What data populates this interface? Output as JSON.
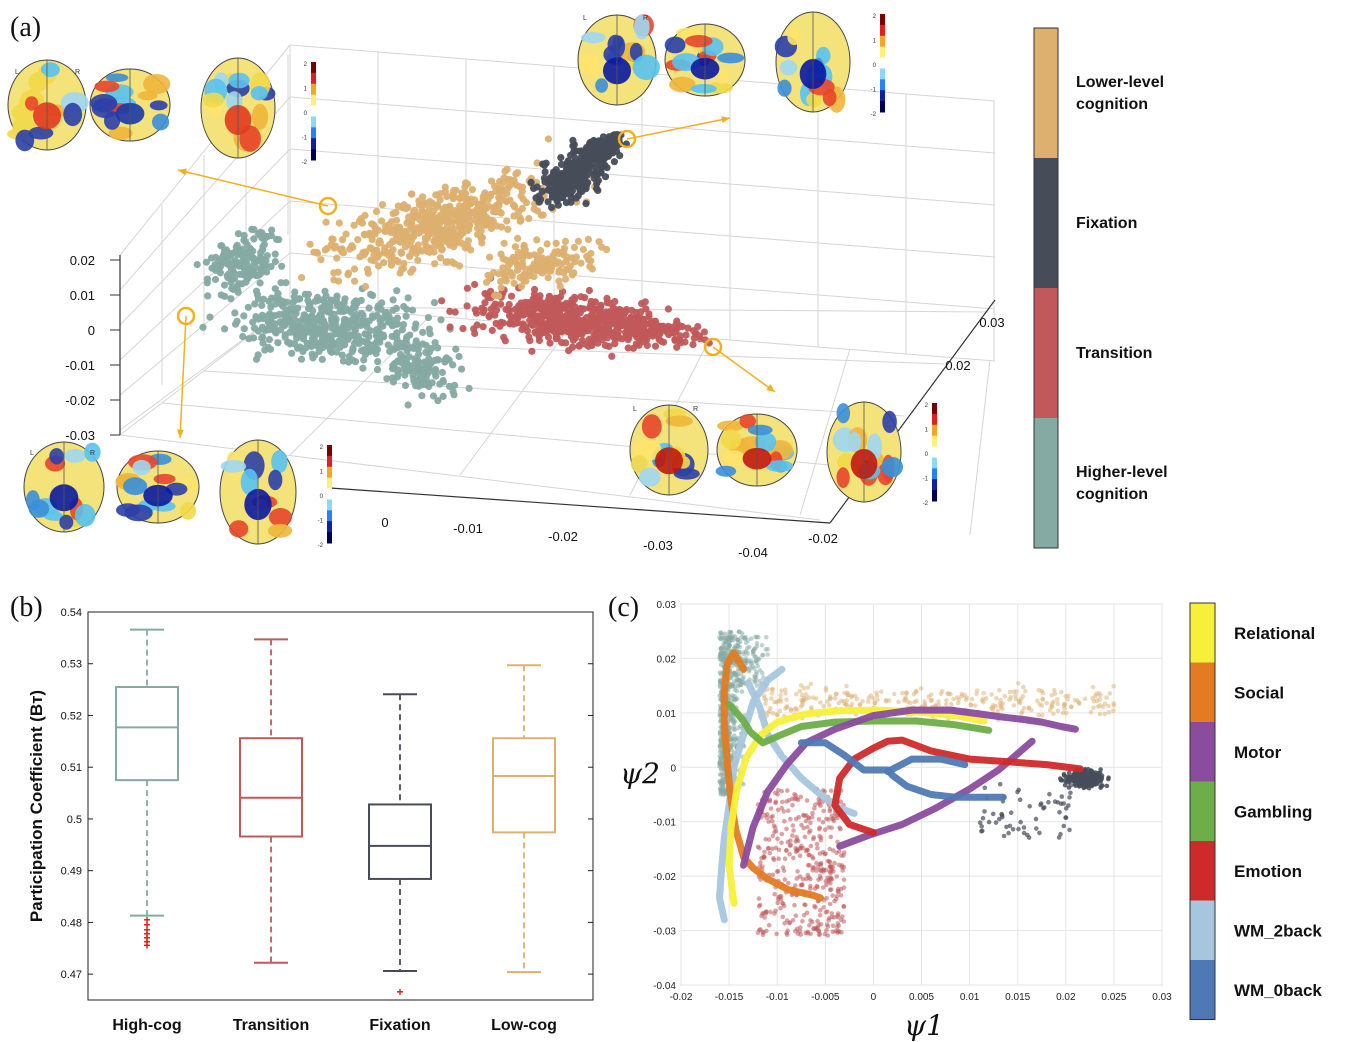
{
  "panels": {
    "a_label": "(a)",
    "b_label": "(b)",
    "c_label": "(c)"
  },
  "chart_data": [
    {
      "id": "a",
      "type": "scatter",
      "projection": "3d",
      "title": "",
      "xlabel": "",
      "ylabel": "",
      "zlabel": "",
      "x_ticks": [
        "0",
        "-0.01",
        "-0.02",
        "-0.03",
        "-0.04"
      ],
      "y_ticks": [
        "-0.02",
        "0.02",
        "0.03"
      ],
      "z_ticks": [
        "0.02",
        "0.01",
        "0",
        "-0.01",
        "-0.02",
        "-0.03"
      ],
      "xlim": [
        -0.04,
        0.0
      ],
      "ylim": [
        -0.02,
        0.03
      ],
      "zlim": [
        -0.03,
        0.02
      ],
      "grid": true,
      "legend": {
        "placement": "right colorbar",
        "entries": [
          {
            "label": "Lower-level\ncognition",
            "color": "#DDB070"
          },
          {
            "label": "Fixation",
            "color": "#474C59"
          },
          {
            "label": "Transition",
            "color": "#C1585A"
          },
          {
            "label": "Higher-level\ncognition",
            "color": "#85A9A3"
          }
        ]
      },
      "series": [
        {
          "name": "Higher-level cognition",
          "color": "#85A9A3",
          "approx_points": 900
        },
        {
          "name": "Transition",
          "color": "#C1585A",
          "approx_points": 800
        },
        {
          "name": "Lower-level cognition",
          "color": "#DDB070",
          "approx_points": 900
        },
        {
          "name": "Fixation",
          "color": "#474C59",
          "approx_points": 400
        }
      ],
      "annotations": {
        "brain_map_colorbar_ticks": [
          "2",
          "1",
          "0",
          "-1",
          "-2"
        ],
        "brain_map_labels": [
          "L",
          "R"
        ],
        "highlight_ring_color": "#F2B01E"
      }
    },
    {
      "id": "b",
      "type": "box",
      "title": "",
      "xlabel": "",
      "ylabel": "Participation Coefficient (B_T)",
      "categories": [
        "High-cog",
        "Transition",
        "Fixation",
        "Low-cog"
      ],
      "ylim": [
        0.465,
        0.54
      ],
      "yticks": [
        "0.54",
        "0.53",
        "0.52",
        "0.51",
        "0.5",
        "0.49",
        "0.48",
        "0.47"
      ],
      "grid": false,
      "boxes": [
        {
          "name": "High-cog",
          "color": "#85A9A3",
          "whisker_low": 0.4813,
          "q1": 0.5075,
          "median": 0.5177,
          "q3": 0.5255,
          "whisker_high": 0.5366,
          "outliers": [
            0.4805,
            0.4795,
            0.4785,
            0.4778,
            0.477,
            0.4762,
            0.4755
          ]
        },
        {
          "name": "Transition",
          "color": "#C1585A",
          "whisker_low": 0.4722,
          "q1": 0.4966,
          "median": 0.5041,
          "q3": 0.5156,
          "whisker_high": 0.5347,
          "outliers": []
        },
        {
          "name": "Fixation",
          "color": "#474C59",
          "whisker_low": 0.4706,
          "q1": 0.4884,
          "median": 0.4948,
          "q3": 0.5028,
          "whisker_high": 0.5241,
          "outliers": [
            0.4665
          ]
        },
        {
          "name": "Low-cog",
          "color": "#DDB070",
          "whisker_low": 0.4704,
          "q1": 0.4974,
          "median": 0.5083,
          "q3": 0.5156,
          "whisker_high": 0.5297,
          "outliers": []
        }
      ]
    },
    {
      "id": "c",
      "type": "line",
      "title": "",
      "xlabel": "ψ1",
      "ylabel": "ψ2",
      "xlim": [
        -0.02,
        0.03
      ],
      "ylim": [
        -0.04,
        0.03
      ],
      "xticks": [
        "-0.02",
        "-0.015",
        "-0.01",
        "-0.005",
        "0",
        "0.005",
        "0.01",
        "0.015",
        "0.02",
        "0.025",
        "0.03"
      ],
      "yticks": [
        "0.03",
        "0.02",
        "0.01",
        "0",
        "-0.01",
        "-0.02",
        "-0.03",
        "-0.04"
      ],
      "grid": true,
      "legend": {
        "placement": "right colorbar",
        "entries": [
          {
            "label": "Relational",
            "color": "#F7F03A"
          },
          {
            "label": "Social",
            "color": "#E37B22"
          },
          {
            "label": "Motor",
            "color": "#8A4D9E"
          },
          {
            "label": "Gambling",
            "color": "#6DAE48"
          },
          {
            "label": "Emotion",
            "color": "#CF2A2A"
          },
          {
            "label": "WM_2back",
            "color": "#A6C6DE"
          },
          {
            "label": "WM_0back",
            "color": "#4F79B5"
          }
        ]
      },
      "background_scatter": [
        {
          "name": "Higher-level cognition",
          "color": "#85A9A3"
        },
        {
          "name": "Transition",
          "color": "#C1585A"
        },
        {
          "name": "Lower-level cognition",
          "color": "#DDB070"
        },
        {
          "name": "Fixation",
          "color": "#474C59"
        }
      ],
      "series": [
        {
          "name": "WM_2back",
          "color": "#A6C6DE",
          "x": [
            -0.0155,
            -0.016,
            -0.0158,
            -0.0155,
            -0.015,
            -0.0145,
            -0.0135,
            -0.0125,
            -0.011,
            -0.0095
          ],
          "y": [
            -0.028,
            -0.024,
            -0.019,
            -0.013,
            -0.007,
            0.0,
            0.006,
            0.012,
            0.016,
            0.018
          ]
        },
        {
          "name": "WM_2back",
          "color": "#A6C6DE",
          "x": [
            -0.013,
            -0.0118,
            -0.011,
            -0.0095,
            -0.0075,
            -0.0055,
            -0.0035,
            -0.002
          ],
          "y": [
            0.0155,
            0.011,
            0.006,
            0.002,
            -0.002,
            -0.005,
            -0.0075,
            -0.0085
          ]
        },
        {
          "name": "Social",
          "color": "#E37B22",
          "x": [
            -0.0135,
            -0.0145,
            -0.0152,
            -0.0155,
            -0.0155,
            -0.0152,
            -0.0148,
            -0.0143,
            -0.0138,
            -0.0135,
            -0.0125,
            -0.011,
            -0.0088,
            -0.0063,
            -0.0055
          ],
          "y": [
            0.018,
            0.021,
            0.019,
            0.014,
            0.008,
            0.001,
            -0.006,
            -0.0115,
            -0.0145,
            -0.0165,
            -0.0185,
            -0.0205,
            -0.0225,
            -0.0235,
            -0.024
          ]
        },
        {
          "name": "Relational",
          "color": "#F7F03A",
          "x": [
            -0.0145,
            -0.015,
            -0.0148,
            -0.0142,
            -0.0132,
            -0.0118,
            -0.01,
            -0.007,
            -0.0035,
            0.0005,
            0.0045,
            0.0085,
            0.0115
          ],
          "y": [
            -0.025,
            -0.018,
            -0.011,
            -0.004,
            0.0018,
            0.0058,
            0.0083,
            0.0098,
            0.0104,
            0.0105,
            0.0102,
            0.0095,
            0.0085
          ]
        },
        {
          "name": "Gambling",
          "color": "#6DAE48",
          "x": [
            -0.015,
            -0.0142,
            -0.0135,
            -0.0128,
            -0.0115,
            -0.0098,
            -0.0075,
            -0.004,
            0.0,
            0.0045,
            0.0085,
            0.012
          ],
          "y": [
            0.0115,
            0.01,
            0.0085,
            0.0065,
            0.0045,
            0.0058,
            0.0075,
            0.0083,
            0.0085,
            0.0085,
            0.0078,
            0.0068
          ]
        },
        {
          "name": "Motor",
          "color": "#8A4D9E",
          "x": [
            -0.0135,
            -0.0125,
            -0.011,
            -0.009,
            -0.007,
            -0.004,
            0.0,
            0.004,
            0.008,
            0.011,
            0.0135,
            0.0155,
            0.0175,
            0.0195,
            0.021
          ],
          "y": [
            -0.018,
            -0.011,
            -0.0045,
            0.0005,
            0.0045,
            0.007,
            0.0095,
            0.0105,
            0.0105,
            0.0098,
            0.0092,
            0.0088,
            0.0083,
            0.0075,
            0.007
          ]
        },
        {
          "name": "Motor",
          "color": "#8A4D9E",
          "x": [
            -0.0035,
            -0.0005,
            0.003,
            0.0065,
            0.01,
            0.013,
            0.015,
            0.0165
          ],
          "y": [
            -0.0145,
            -0.0125,
            -0.0105,
            -0.0075,
            -0.004,
            -0.0005,
            0.0025,
            0.0048
          ]
        },
        {
          "name": "Emotion",
          "color": "#CF2A2A",
          "x": [
            0.0,
            -0.0025,
            -0.004,
            -0.0035,
            -0.002,
            0.0,
            0.0015,
            0.003,
            0.006,
            0.01,
            0.014,
            0.018,
            0.0215
          ],
          "y": [
            -0.012,
            -0.0105,
            -0.007,
            -0.002,
            0.0015,
            0.0035,
            0.0048,
            0.005,
            0.003,
            0.0015,
            0.001,
            0.0005,
            -0.0003
          ]
        },
        {
          "name": "WM_0back",
          "color": "#4F79B5",
          "x": [
            -0.0075,
            -0.005,
            -0.003,
            -0.001,
            0.0015,
            0.002,
            0.0035,
            0.006,
            0.0085,
            0.0115,
            0.0135
          ],
          "y": [
            0.0045,
            0.0045,
            0.0022,
            -0.0005,
            -0.0005,
            -0.0015,
            -0.0035,
            -0.005,
            -0.0055,
            -0.0055,
            -0.0055
          ]
        },
        {
          "name": "WM_0back",
          "color": "#4F79B5",
          "x": [
            0.0015,
            0.004,
            0.007,
            0.0095
          ],
          "y": [
            -0.0008,
            0.0015,
            0.0015,
            0.0005
          ]
        }
      ]
    }
  ]
}
